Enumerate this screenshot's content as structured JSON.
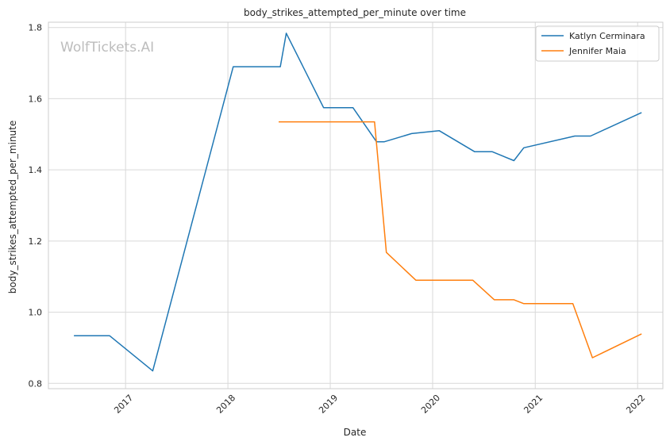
{
  "watermark": "WolfTickets.AI",
  "chart_data": {
    "type": "line",
    "title": "body_strikes_attempted_per_minute over time",
    "xlabel": "Date",
    "ylabel": "body_strikes_attempted_per_minute",
    "x_axis": "date",
    "xlim": [
      "2016-04-01",
      "2022-04-01"
    ],
    "ylim": [
      0.785,
      1.815
    ],
    "x_ticks": [
      {
        "date": "2017-01-01",
        "label": "2017"
      },
      {
        "date": "2018-01-01",
        "label": "2018"
      },
      {
        "date": "2019-01-01",
        "label": "2019"
      },
      {
        "date": "2020-01-01",
        "label": "2020"
      },
      {
        "date": "2021-01-01",
        "label": "2021"
      },
      {
        "date": "2022-01-01",
        "label": "2022"
      }
    ],
    "y_ticks": [
      0.8,
      1.0,
      1.2,
      1.4,
      1.6,
      1.8
    ],
    "y_tick_labels": [
      "0.8",
      "1.0",
      "1.2",
      "1.4",
      "1.6",
      "1.8"
    ],
    "grid": true,
    "legend_position": "top-right",
    "series": [
      {
        "name": "Katlyn Cerminara",
        "color": "#1f77b4",
        "points": [
          [
            "2016-07-01",
            0.934
          ],
          [
            "2016-11-05",
            0.934
          ],
          [
            "2017-04-08",
            0.835
          ],
          [
            "2018-01-20",
            1.69
          ],
          [
            "2018-07-07",
            1.69
          ],
          [
            "2018-07-28",
            1.784
          ],
          [
            "2018-12-08",
            1.575
          ],
          [
            "2019-03-23",
            1.575
          ],
          [
            "2019-06-15",
            1.479
          ],
          [
            "2019-07-13",
            1.479
          ],
          [
            "2019-10-18",
            1.502
          ],
          [
            "2020-01-25",
            1.51
          ],
          [
            "2020-05-30",
            1.451
          ],
          [
            "2020-08-01",
            1.451
          ],
          [
            "2020-10-17",
            1.426
          ],
          [
            "2020-11-21",
            1.462
          ],
          [
            "2021-05-22",
            1.495
          ],
          [
            "2021-07-17",
            1.495
          ],
          [
            "2022-01-15",
            1.561
          ]
        ]
      },
      {
        "name": "Jennifer Maia",
        "color": "#ff7f0e",
        "points": [
          [
            "2018-07-01",
            1.535
          ],
          [
            "2019-06-08",
            1.535
          ],
          [
            "2019-07-20",
            1.168
          ],
          [
            "2019-11-02",
            1.09
          ],
          [
            "2020-05-23",
            1.09
          ],
          [
            "2020-08-08",
            1.035
          ],
          [
            "2020-10-17",
            1.035
          ],
          [
            "2020-11-21",
            1.024
          ],
          [
            "2021-05-15",
            1.024
          ],
          [
            "2021-07-24",
            0.872
          ],
          [
            "2022-01-15",
            0.939
          ]
        ]
      }
    ]
  }
}
